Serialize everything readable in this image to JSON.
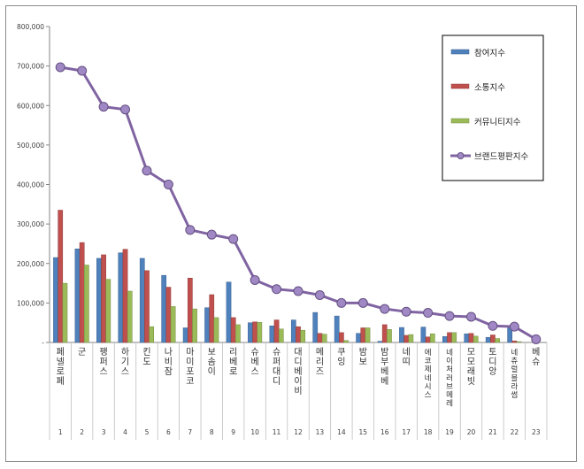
{
  "chart_data": {
    "type": "bar",
    "title": "",
    "xlabel": "",
    "ylabel": "",
    "ylim": [
      0,
      800000
    ],
    "yticks": [
      "-",
      "100,000",
      "200,000",
      "300,000",
      "400,000",
      "500,000",
      "600,000",
      "700,000",
      "800,000"
    ],
    "grid": false,
    "legend_position": "top-right",
    "numbers": [
      "1",
      "2",
      "3",
      "4",
      "5",
      "6",
      "7",
      "8",
      "9",
      "10",
      "11",
      "12",
      "13",
      "14",
      "15",
      "16",
      "17",
      "18",
      "19",
      "20",
      "21",
      "22",
      "23"
    ],
    "categories": [
      "페넬로페",
      "군",
      "팽퍼스",
      "하기스",
      "킨도",
      "나비잠",
      "마미포코",
      "보솜이",
      "리베로",
      "슈베스",
      "슈퍼대디",
      "대디베이비",
      "메리즈",
      "쿠잉",
      "밤보",
      "밤부베베",
      "네띠",
      "에코제네시스",
      "네이처러브메레",
      "모모래빗",
      "토디앙",
      "네츄럴블라썸",
      "베슈"
    ],
    "series": [
      {
        "name": "참여지수",
        "type": "bar",
        "color": "#4f81bd",
        "values": [
          215000,
          237000,
          213000,
          227000,
          213000,
          170000,
          37000,
          88000,
          153000,
          50000,
          42000,
          57000,
          76000,
          67000,
          23000,
          3000,
          38000,
          39000,
          15000,
          22000,
          13000,
          37000,
          0
        ]
      },
      {
        "name": "소통지수",
        "type": "bar",
        "color": "#c0504d",
        "values": [
          335000,
          253000,
          222000,
          236000,
          182000,
          140000,
          163000,
          121000,
          63000,
          52000,
          57000,
          40000,
          23000,
          25000,
          37000,
          45000,
          18000,
          14000,
          25000,
          23000,
          19000,
          4000,
          0
        ]
      },
      {
        "name": "커뮤니티지수",
        "type": "bar",
        "color": "#9bbb59",
        "values": [
          150000,
          196000,
          160000,
          130000,
          40000,
          91000,
          85000,
          63000,
          45000,
          51000,
          34000,
          31000,
          21000,
          5000,
          37000,
          33000,
          20000,
          22000,
          25000,
          16000,
          10000,
          2000,
          0
        ]
      },
      {
        "name": "브랜드평판지수",
        "type": "line",
        "color": "#8064a2",
        "values": [
          697000,
          688000,
          597000,
          590000,
          435000,
          400000,
          285000,
          273000,
          262000,
          158000,
          135000,
          130000,
          120000,
          100000,
          100000,
          85000,
          78000,
          75000,
          67000,
          65000,
          42000,
          40000,
          8000
        ]
      }
    ]
  }
}
